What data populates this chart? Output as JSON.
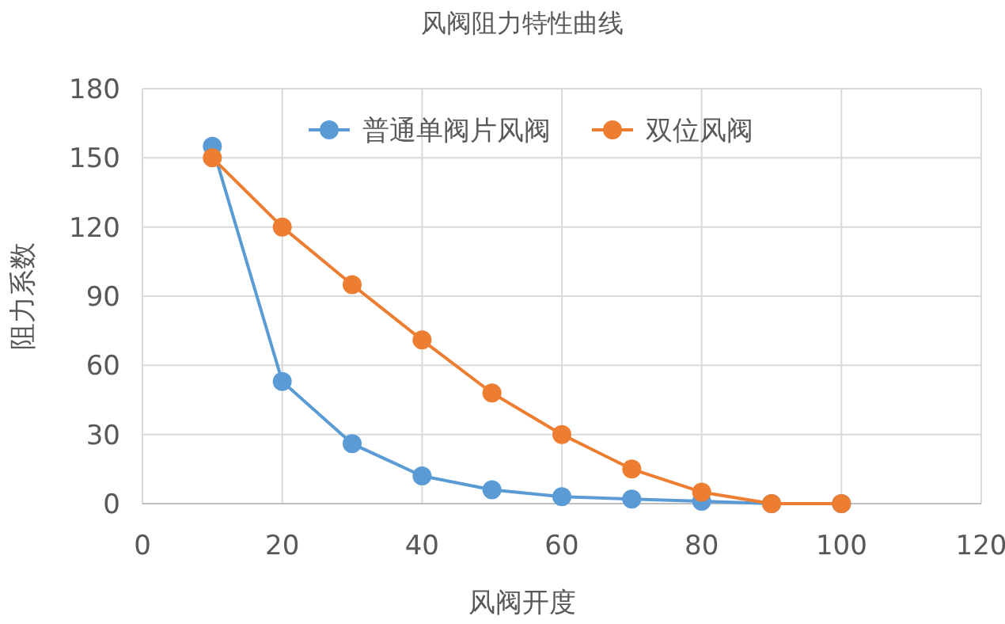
{
  "chart_data": {
    "type": "line",
    "title": "风阀阻力特性曲线",
    "xlabel": "风阀开度",
    "ylabel": "阻力系数",
    "x": [
      10,
      20,
      30,
      40,
      50,
      60,
      70,
      80,
      90,
      100
    ],
    "series": [
      {
        "name": "普通单阀片风阀",
        "color": "#5b9bd5",
        "values": [
          155,
          53,
          26,
          12,
          6,
          3,
          2,
          1,
          0,
          0
        ]
      },
      {
        "name": "双位风阀",
        "color": "#ed7d31",
        "values": [
          150,
          120,
          95,
          71,
          48,
          30,
          15,
          5,
          0,
          0
        ]
      }
    ],
    "xlim": [
      0,
      120
    ],
    "xticks": [
      0,
      20,
      40,
      60,
      80,
      100,
      120
    ],
    "ylim": [
      0,
      180
    ],
    "yticks": [
      0,
      30,
      60,
      90,
      120,
      150,
      180
    ],
    "grid": true,
    "legend": "top",
    "marker": "circle",
    "line_style": "solid"
  }
}
